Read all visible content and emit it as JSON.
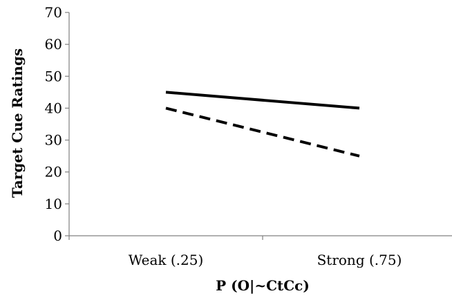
{
  "chart_data": {
    "type": "line",
    "title": "",
    "xlabel": "P (O|~CtCc)",
    "ylabel": "Target Cue Ratings",
    "categories": [
      "Weak (.25)",
      "Strong (.75)"
    ],
    "y_ticks": [
      "0",
      "10",
      "20",
      "30",
      "40",
      "50",
      "60",
      "70"
    ],
    "ylim": [
      0,
      70
    ],
    "grid": false,
    "legend": "none",
    "series": [
      {
        "style": "solid",
        "color": "#000000",
        "values": [
          45,
          40
        ]
      },
      {
        "style": "dashed",
        "color": "#000000",
        "values": [
          40,
          25
        ]
      }
    ]
  }
}
